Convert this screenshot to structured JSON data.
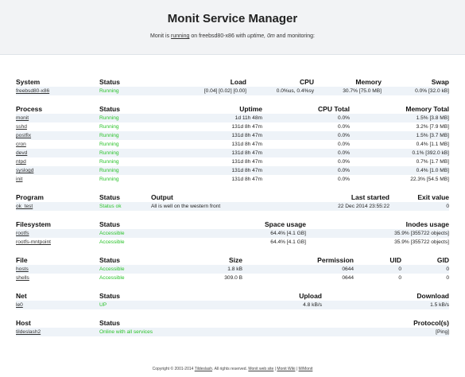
{
  "header": {
    "title": "Monit Service Manager",
    "sub_prefix": "Monit is ",
    "sub_running": "running",
    "sub_mid": " on freebsd80-x86 with ",
    "sub_uptime": "uptime, 0m",
    "sub_suffix": "  and monitoring:"
  },
  "system": {
    "headers": [
      "System",
      "Status",
      "Load",
      "CPU",
      "Memory",
      "Swap"
    ],
    "rows": [
      {
        "name": "freebsd80-x86",
        "status": "Running",
        "load": "[0.04] [0.02] [0.00]",
        "cpu": "0.0%us, 0.4%sy",
        "memory": "30.7% [75.0 MB]",
        "swap": "0.0% [32.0 kB]"
      }
    ]
  },
  "process": {
    "headers": [
      "Process",
      "Status",
      "Uptime",
      "CPU Total",
      "Memory Total"
    ],
    "rows": [
      {
        "name": "monit",
        "status": "Running",
        "uptime": "1d 11h 48m",
        "cpu": "0.0%",
        "mem": "1.5% [3.8 MB]"
      },
      {
        "name": "sshd",
        "status": "Running",
        "uptime": "131d 8h 47m",
        "cpu": "0.0%",
        "mem": "3.2% [7.9 MB]"
      },
      {
        "name": "postfix",
        "status": "Running",
        "uptime": "131d 8h 47m",
        "cpu": "0.0%",
        "mem": "1.5% [3.7 MB]"
      },
      {
        "name": "cron",
        "status": "Running",
        "uptime": "131d 8h 47m",
        "cpu": "0.0%",
        "mem": "0.4% [1.1 MB]"
      },
      {
        "name": "devd",
        "status": "Running",
        "uptime": "131d 8h 47m",
        "cpu": "0.0%",
        "mem": "0.1% [392.0 kB]"
      },
      {
        "name": "ntpd",
        "status": "Running",
        "uptime": "131d 8h 47m",
        "cpu": "0.0%",
        "mem": "0.7% [1.7 MB]"
      },
      {
        "name": "syslogd",
        "status": "Running",
        "uptime": "131d 8h 47m",
        "cpu": "0.0%",
        "mem": "0.4% [1.0 MB]"
      },
      {
        "name": "init",
        "status": "Running",
        "uptime": "131d 8h 47m",
        "cpu": "0.0%",
        "mem": "22.3% [54.5 MB]"
      }
    ]
  },
  "program": {
    "headers": [
      "Program",
      "Status",
      "Output",
      "Last started",
      "Exit value"
    ],
    "rows": [
      {
        "name": "ok_test",
        "status": "Status ok",
        "output": "All is well on the western front",
        "last": "22 Dec 2014 23:55:22",
        "exit": "0"
      }
    ]
  },
  "filesystem": {
    "headers": [
      "Filesystem",
      "Status",
      "Space usage",
      "Inodes usage"
    ],
    "rows": [
      {
        "name": "rootfs",
        "status": "Accessible",
        "space": "64.4% [4.1 GB]",
        "inodes": "35.9% [355722 objects]"
      },
      {
        "name": "rootfs-mntpoint",
        "status": "Accessible",
        "space": "64.4% [4.1 GB]",
        "inodes": "35.9% [355722 objects]"
      }
    ]
  },
  "file": {
    "headers": [
      "File",
      "Status",
      "Size",
      "Permission",
      "UID",
      "GID"
    ],
    "rows": [
      {
        "name": "hosts",
        "status": "Accessible",
        "size": "1.8 kB",
        "perm": "0644",
        "uid": "0",
        "gid": "0"
      },
      {
        "name": "shells",
        "status": "Accessible",
        "size": "309.0 B",
        "perm": "0644",
        "uid": "0",
        "gid": "0"
      }
    ]
  },
  "net": {
    "headers": [
      "Net",
      "Status",
      "Upload",
      "Download"
    ],
    "rows": [
      {
        "name": "le0",
        "status": "UP",
        "upload": "4.8 kB/s",
        "download": "1.5 kB/s"
      }
    ]
  },
  "host": {
    "headers": [
      "Host",
      "Status",
      "Protocol(s)"
    ],
    "rows": [
      {
        "name": "tildeslash2",
        "status": "Online with all services",
        "proto": "[Ping]"
      }
    ]
  },
  "footer": {
    "copyright": "Copyright © 2001-2014 ",
    "tildeslash": "Tildeslash",
    "rights": ". All rights reserved.  ",
    "web": "Monit web site",
    "sep1": " | ",
    "wiki": "Monit Wiki",
    "sep2": " | ",
    "mmonit": "M/Monit"
  },
  "colors": {
    "status_ok": "#29c229",
    "header_bg": "#f2f3f5",
    "row_alt": "#eef3f8"
  }
}
